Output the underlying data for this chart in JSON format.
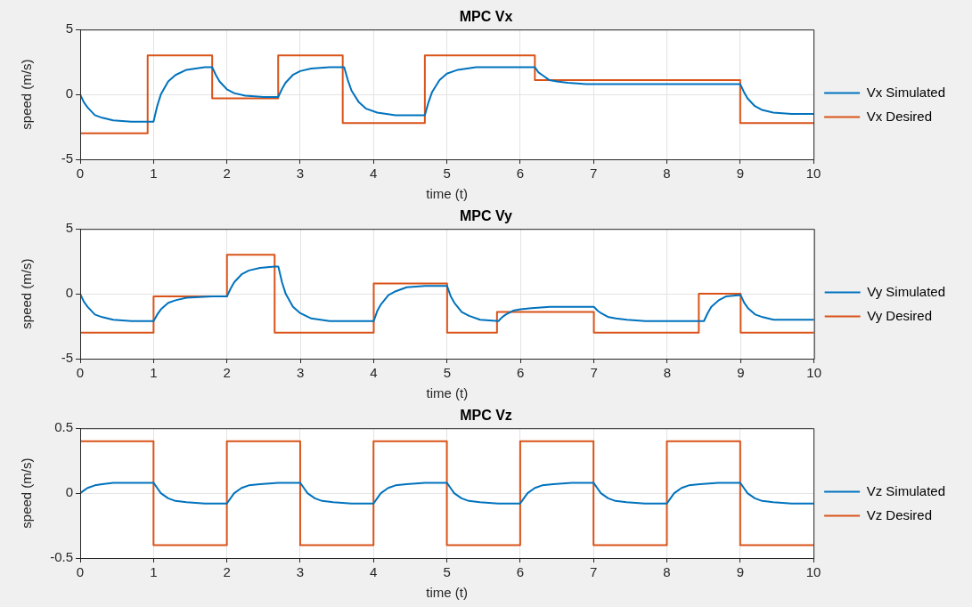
{
  "chart_data": [
    {
      "type": "line",
      "title": "MPC Vx",
      "xlabel": "time (t)",
      "ylabel": "speed (m/s)",
      "xlim": [
        0,
        10
      ],
      "xticks": [
        0,
        1,
        2,
        3,
        4,
        5,
        6,
        7,
        8,
        9,
        10
      ],
      "ylim": [
        -5,
        5
      ],
      "yticks": [
        -5,
        0,
        5
      ],
      "grid": true,
      "legend": "right",
      "marker": "none",
      "line_style": "solid",
      "series": [
        {
          "name": "Vx Simulated",
          "type": "line",
          "color": "#0072bd",
          "x": [
            0,
            0.05,
            0.1,
            0.2,
            0.3,
            0.45,
            0.7,
            1.0,
            1.05,
            1.1,
            1.2,
            1.3,
            1.45,
            1.7,
            1.8,
            1.85,
            1.9,
            2.0,
            2.1,
            2.25,
            2.5,
            2.7,
            2.75,
            2.8,
            2.9,
            3.0,
            3.15,
            3.4,
            3.6,
            3.65,
            3.7,
            3.8,
            3.9,
            4.05,
            4.3,
            4.7,
            4.75,
            4.8,
            4.9,
            5.0,
            5.15,
            5.4,
            6.2,
            6.25,
            6.3,
            6.4,
            6.5,
            6.65,
            6.9,
            9.0,
            9.05,
            9.1,
            9.2,
            9.3,
            9.45,
            9.7,
            10
          ],
          "values": [
            0,
            -0.6,
            -1.0,
            -1.6,
            -1.8,
            -2.0,
            -2.1,
            -2.1,
            -0.9,
            0,
            1.0,
            1.5,
            1.9,
            2.1,
            2.1,
            1.5,
            1.0,
            0.4,
            0.1,
            -0.1,
            -0.2,
            -0.2,
            0.4,
            0.9,
            1.5,
            1.8,
            2.0,
            2.1,
            2.1,
            1.1,
            0.3,
            -0.6,
            -1.1,
            -1.4,
            -1.6,
            -1.6,
            -0.6,
            0.2,
            1.1,
            1.6,
            1.9,
            2.1,
            2.1,
            1.7,
            1.5,
            1.1,
            1.0,
            0.9,
            0.8,
            0.8,
            0.2,
            -0.3,
            -0.9,
            -1.2,
            -1.4,
            -1.5,
            -1.5
          ]
        },
        {
          "name": "Vx Desired",
          "type": "step",
          "color": "#d95319",
          "x": [
            0,
            0.92,
            1.8,
            2.7,
            3.58,
            4.7,
            6.2,
            9.0,
            10
          ],
          "values": [
            -3,
            3,
            -0.3,
            3,
            -2.2,
            3,
            1.1,
            -2.2,
            -2.2
          ]
        }
      ]
    },
    {
      "type": "line",
      "title": "MPC Vy",
      "xlabel": "time (t)",
      "ylabel": "speed (m/s)",
      "xlim": [
        0,
        10
      ],
      "xticks": [
        0,
        1,
        2,
        3,
        4,
        5,
        6,
        7,
        8,
        9,
        10
      ],
      "ylim": [
        -5,
        5
      ],
      "yticks": [
        -5,
        0,
        5
      ],
      "grid": true,
      "legend": "right",
      "marker": "none",
      "line_style": "solid",
      "series": [
        {
          "name": "Vy Simulated",
          "type": "line",
          "color": "#0072bd",
          "x": [
            0,
            0.05,
            0.1,
            0.2,
            0.3,
            0.45,
            0.7,
            1.0,
            1.05,
            1.1,
            1.2,
            1.3,
            1.45,
            1.8,
            2.0,
            2.05,
            2.1,
            2.2,
            2.3,
            2.45,
            2.65,
            2.7,
            2.75,
            2.8,
            2.9,
            3.0,
            3.15,
            3.4,
            4.0,
            4.05,
            4.1,
            4.2,
            4.3,
            4.45,
            4.7,
            5.0,
            5.05,
            5.1,
            5.2,
            5.3,
            5.45,
            5.7,
            5.75,
            5.8,
            5.9,
            6.0,
            6.15,
            6.4,
            7.0,
            7.05,
            7.1,
            7.2,
            7.3,
            7.45,
            7.7,
            8.5,
            8.55,
            8.6,
            8.7,
            8.8,
            9.0,
            9.05,
            9.1,
            9.2,
            9.3,
            9.45,
            9.7,
            10
          ],
          "values": [
            0,
            -0.6,
            -1.0,
            -1.6,
            -1.8,
            -2.0,
            -2.1,
            -2.1,
            -1.6,
            -1.2,
            -0.7,
            -0.5,
            -0.3,
            -0.2,
            -0.2,
            0.4,
            0.9,
            1.5,
            1.8,
            2.0,
            2.1,
            2.1,
            0.9,
            0,
            -1.0,
            -1.5,
            -1.9,
            -2.1,
            -2.1,
            -1.3,
            -0.8,
            -0.1,
            0.2,
            0.5,
            0.6,
            0.6,
            -0.2,
            -0.7,
            -1.4,
            -1.7,
            -2.0,
            -2.1,
            -1.8,
            -1.6,
            -1.3,
            -1.2,
            -1.1,
            -1.0,
            -1.0,
            -1.3,
            -1.5,
            -1.8,
            -1.9,
            -2.0,
            -2.1,
            -2.1,
            -1.5,
            -1.0,
            -0.5,
            -0.2,
            -0.1,
            -0.7,
            -1.1,
            -1.6,
            -1.8,
            -2.0,
            -2.0,
            -2.0
          ]
        },
        {
          "name": "Vy Desired",
          "type": "step",
          "color": "#d95319",
          "x": [
            0,
            1.0,
            2.0,
            2.65,
            4.0,
            5.0,
            5.68,
            7.0,
            8.43,
            9.0,
            10
          ],
          "values": [
            -3,
            -0.2,
            3,
            -3,
            0.8,
            -3,
            -1.4,
            -3,
            0,
            -3,
            -3
          ]
        }
      ]
    },
    {
      "type": "line",
      "title": "MPC Vz",
      "xlabel": "time (t)",
      "ylabel": "speed (m/s)",
      "xlim": [
        0,
        10
      ],
      "xticks": [
        0,
        1,
        2,
        3,
        4,
        5,
        6,
        7,
        8,
        9,
        10
      ],
      "ylim": [
        -0.5,
        0.5
      ],
      "yticks": [
        -0.5,
        0,
        0.5
      ],
      "grid": true,
      "legend": "right",
      "marker": "none",
      "line_style": "solid",
      "series": [
        {
          "name": "Vz Simulated",
          "type": "line",
          "color": "#0072bd",
          "x": [
            0,
            0.05,
            0.1,
            0.2,
            0.3,
            0.45,
            0.7,
            1.0,
            1.05,
            1.1,
            1.2,
            1.3,
            1.45,
            1.7,
            2.0,
            2.05,
            2.1,
            2.2,
            2.3,
            2.45,
            2.7,
            3.0,
            3.05,
            3.1,
            3.2,
            3.3,
            3.45,
            3.7,
            4.0,
            4.05,
            4.1,
            4.2,
            4.3,
            4.45,
            4.7,
            5.0,
            5.05,
            5.1,
            5.2,
            5.3,
            5.45,
            5.7,
            6.0,
            6.05,
            6.1,
            6.2,
            6.3,
            6.45,
            6.7,
            7.0,
            7.05,
            7.1,
            7.2,
            7.3,
            7.45,
            7.7,
            8.0,
            8.05,
            8.1,
            8.2,
            8.3,
            8.45,
            8.7,
            9.0,
            9.05,
            9.1,
            9.2,
            9.3,
            9.45,
            9.7,
            10
          ],
          "values": [
            0,
            0.02,
            0.04,
            0.06,
            0.07,
            0.08,
            0.08,
            0.08,
            0.04,
            0,
            -0.04,
            -0.06,
            -0.07,
            -0.08,
            -0.08,
            -0.04,
            0,
            0.04,
            0.06,
            0.07,
            0.08,
            0.08,
            0.04,
            0,
            -0.04,
            -0.06,
            -0.07,
            -0.08,
            -0.08,
            -0.04,
            0,
            0.04,
            0.06,
            0.07,
            0.08,
            0.08,
            0.04,
            0,
            -0.04,
            -0.06,
            -0.07,
            -0.08,
            -0.08,
            -0.04,
            0,
            0.04,
            0.06,
            0.07,
            0.08,
            0.08,
            0.04,
            0,
            -0.04,
            -0.06,
            -0.07,
            -0.08,
            -0.08,
            -0.04,
            0,
            0.04,
            0.06,
            0.07,
            0.08,
            0.08,
            0.04,
            0,
            -0.04,
            -0.06,
            -0.07,
            -0.08,
            -0.08
          ]
        },
        {
          "name": "Vz Desired",
          "type": "step",
          "color": "#d95319",
          "x": [
            0,
            1,
            2,
            3,
            4,
            5,
            6,
            7,
            8,
            9,
            10
          ],
          "values": [
            0.4,
            -0.4,
            0.4,
            -0.4,
            0.4,
            -0.4,
            0.4,
            -0.4,
            0.4,
            -0.4,
            -0.4
          ]
        }
      ]
    }
  ]
}
